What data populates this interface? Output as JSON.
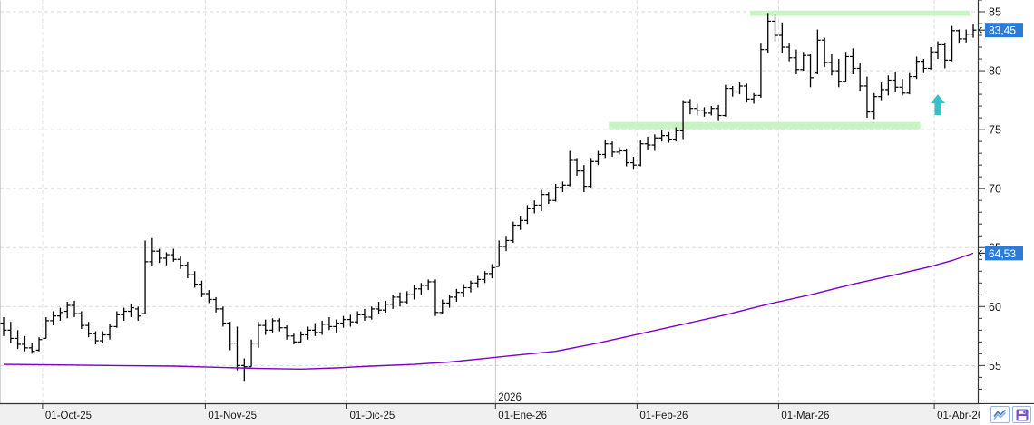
{
  "chart_data": {
    "type": "ohlc-bar",
    "locale": "es",
    "grid": true,
    "colors": {
      "bar": "#000000",
      "moving_average": "#7a00cc",
      "zone_green": "#c8f3c3",
      "signal_arrow": "#35c3c8",
      "price_marker_bg": "#2d7bd8",
      "price_marker_text": "#ffffff",
      "grid_line": "#dadada",
      "month_line": "#e0e0e0",
      "year_line": "#c6c6c6",
      "axis_line": "#333333",
      "axis_text": "#1a1a1a",
      "bottom_strip_bg": "#f0f0f0"
    },
    "y_axis": {
      "min": 51.8,
      "max": 86.0,
      "major_tick_labels": [
        "55",
        "60",
        "65",
        "70",
        "75",
        "80",
        "85"
      ],
      "major_step": 5,
      "minor_step": 1
    },
    "x_axis": {
      "tick_labels": [
        "01-Oct-25",
        "01-Nov-25",
        "01-Dic-25",
        "01-Ene-26",
        "01-Feb-26",
        "01-Mar-26",
        "01-Abr-26"
      ],
      "year_label": "2026"
    },
    "price_markers": [
      {
        "label": "83,45",
        "value": 83.45
      },
      {
        "label": "64,53",
        "value": 64.53
      }
    ],
    "zones": [
      {
        "name": "resistance-zone",
        "from": "2026-02-24",
        "to": "2026-04-07",
        "price_low": 84.65,
        "price_high": 85.1
      },
      {
        "name": "support-zone",
        "from": "2026-01-27",
        "to": "2026-03-27",
        "price_low": 75.05,
        "price_high": 75.65
      }
    ],
    "signal_arrow": {
      "date": "2026-04-01",
      "price": 78.0,
      "direction": "up"
    },
    "moving_average": {
      "last_value": 64.53,
      "points": [
        [
          0,
          55.1
        ],
        [
          8,
          55.05
        ],
        [
          16,
          55.0
        ],
        [
          24,
          54.95
        ],
        [
          30,
          54.85
        ],
        [
          36,
          54.75
        ],
        [
          42,
          54.7
        ],
        [
          47,
          54.8
        ],
        [
          52,
          54.95
        ],
        [
          58,
          55.1
        ],
        [
          63,
          55.3
        ],
        [
          68,
          55.6
        ],
        [
          72,
          55.85
        ],
        [
          78,
          56.2
        ],
        [
          84,
          56.9
        ],
        [
          90,
          57.7
        ],
        [
          96,
          58.5
        ],
        [
          102,
          59.3
        ],
        [
          108,
          60.2
        ],
        [
          114,
          61.0
        ],
        [
          120,
          61.9
        ],
        [
          126,
          62.7
        ],
        [
          131,
          63.4
        ],
        [
          134,
          63.9
        ],
        [
          137,
          64.53
        ]
      ]
    },
    "bars": [
      [
        "2025-09-23",
        58.6,
        59.1,
        57.5,
        58.0
      ],
      [
        "2025-09-24",
        58.0,
        58.7,
        56.9,
        57.3
      ],
      [
        "2025-09-25",
        57.3,
        58.0,
        56.4,
        56.8
      ],
      [
        "2025-09-26",
        56.8,
        57.5,
        56.2,
        56.5
      ],
      [
        "2025-09-29",
        56.5,
        56.9,
        56.0,
        56.2
      ],
      [
        "2025-09-30",
        56.3,
        57.4,
        56.2,
        57.2
      ],
      [
        "2025-10-01",
        57.3,
        59.1,
        57.3,
        58.8
      ],
      [
        "2025-10-02",
        58.8,
        59.6,
        58.4,
        59.2
      ],
      [
        "2025-10-03",
        59.2,
        59.9,
        58.8,
        59.5
      ],
      [
        "2025-10-06",
        59.6,
        60.4,
        59.0,
        60.1
      ],
      [
        "2025-10-07",
        60.1,
        60.5,
        59.1,
        59.4
      ],
      [
        "2025-10-08",
        59.4,
        59.6,
        58.1,
        58.4
      ],
      [
        "2025-10-09",
        58.4,
        58.7,
        57.4,
        57.7
      ],
      [
        "2025-10-10",
        57.7,
        57.9,
        56.8,
        57.1
      ],
      [
        "2025-10-13",
        57.1,
        57.9,
        56.9,
        57.6
      ],
      [
        "2025-10-14",
        57.6,
        58.5,
        57.2,
        58.3
      ],
      [
        "2025-10-15",
        58.3,
        59.6,
        58.2,
        59.3
      ],
      [
        "2025-10-16",
        59.3,
        59.9,
        58.8,
        59.6
      ],
      [
        "2025-10-17",
        59.6,
        60.2,
        59.1,
        59.9
      ],
      [
        "2025-10-20",
        59.8,
        60.0,
        58.8,
        59.2
      ],
      [
        "2025-10-21",
        59.4,
        65.6,
        59.4,
        63.8
      ],
      [
        "2025-10-22",
        63.8,
        65.8,
        63.4,
        64.7
      ],
      [
        "2025-10-23",
        64.7,
        64.9,
        63.7,
        64.1
      ],
      [
        "2025-10-24",
        64.1,
        64.6,
        63.5,
        64.4
      ],
      [
        "2025-10-27",
        64.4,
        64.9,
        63.8,
        64.0
      ],
      [
        "2025-10-28",
        64.0,
        64.3,
        63.2,
        63.5
      ],
      [
        "2025-10-29",
        63.5,
        63.8,
        62.4,
        62.7
      ],
      [
        "2025-10-30",
        62.7,
        63.0,
        61.6,
        61.9
      ],
      [
        "2025-10-31",
        61.9,
        62.2,
        60.8,
        61.1
      ],
      [
        "2025-11-03",
        61.1,
        61.4,
        60.3,
        60.6
      ],
      [
        "2025-11-04",
        60.6,
        60.8,
        59.5,
        59.8
      ],
      [
        "2025-11-05",
        59.8,
        60.0,
        58.3,
        58.6
      ],
      [
        "2025-11-06",
        58.6,
        58.7,
        56.3,
        56.9
      ],
      [
        "2025-11-07",
        56.9,
        58.3,
        54.6,
        55.0
      ],
      [
        "2025-11-10",
        55.0,
        55.6,
        53.7,
        54.9
      ],
      [
        "2025-11-11",
        54.9,
        57.2,
        54.9,
        56.9
      ],
      [
        "2025-11-12",
        56.9,
        58.7,
        56.5,
        58.4
      ],
      [
        "2025-11-13",
        58.4,
        58.9,
        57.6,
        58.0
      ],
      [
        "2025-11-14",
        58.0,
        59.0,
        57.8,
        58.8
      ],
      [
        "2025-11-17",
        58.8,
        59.0,
        57.9,
        58.2
      ],
      [
        "2025-11-18",
        58.2,
        58.4,
        57.2,
        57.5
      ],
      [
        "2025-11-19",
        57.5,
        57.7,
        56.8,
        57.0
      ],
      [
        "2025-11-20",
        57.0,
        57.9,
        56.9,
        57.6
      ],
      [
        "2025-11-21",
        57.6,
        58.3,
        57.2,
        58.0
      ],
      [
        "2025-11-24",
        58.0,
        58.6,
        57.5,
        57.8
      ],
      [
        "2025-11-25",
        57.8,
        58.8,
        57.6,
        58.5
      ],
      [
        "2025-11-26",
        58.5,
        59.1,
        58.0,
        58.3
      ],
      [
        "2025-11-27",
        58.3,
        58.9,
        57.8,
        58.6
      ],
      [
        "2025-11-28",
        58.6,
        59.2,
        58.2,
        58.9
      ],
      [
        "2025-12-01",
        58.9,
        59.3,
        58.3,
        58.7
      ],
      [
        "2025-12-02",
        58.7,
        59.6,
        58.5,
        59.3
      ],
      [
        "2025-12-03",
        59.3,
        59.8,
        58.8,
        59.1
      ],
      [
        "2025-12-04",
        59.1,
        60.0,
        58.9,
        59.8
      ],
      [
        "2025-12-05",
        59.8,
        60.4,
        59.4,
        59.7
      ],
      [
        "2025-12-08",
        59.7,
        60.5,
        59.5,
        60.2
      ],
      [
        "2025-12-09",
        60.2,
        61.0,
        59.8,
        60.8
      ],
      [
        "2025-12-10",
        60.8,
        61.2,
        60.0,
        60.4
      ],
      [
        "2025-12-11",
        60.4,
        61.3,
        60.2,
        61.0
      ],
      [
        "2025-12-12",
        61.0,
        61.8,
        60.6,
        61.5
      ],
      [
        "2025-12-15",
        61.5,
        62.0,
        61.0,
        61.8
      ],
      [
        "2025-12-16",
        61.8,
        62.3,
        61.4,
        62.1
      ],
      [
        "2025-12-17",
        62.1,
        62.3,
        59.2,
        59.5
      ],
      [
        "2025-12-18",
        59.5,
        60.6,
        59.4,
        60.3
      ],
      [
        "2025-12-19",
        60.3,
        61.0,
        59.9,
        60.8
      ],
      [
        "2025-12-22",
        60.8,
        61.5,
        60.4,
        61.2
      ],
      [
        "2025-12-23",
        61.2,
        61.9,
        60.8,
        61.6
      ],
      [
        "2025-12-24",
        61.6,
        62.2,
        61.2,
        62.0
      ],
      [
        "2025-12-29",
        62.0,
        62.6,
        61.6,
        62.3
      ],
      [
        "2025-12-30",
        62.3,
        63.0,
        62.0,
        62.8
      ],
      [
        "2025-12-31",
        62.8,
        63.6,
        62.4,
        63.3
      ],
      [
        "2026-01-02",
        63.4,
        65.6,
        63.4,
        65.1
      ],
      [
        "2026-01-05",
        65.1,
        66.0,
        64.7,
        65.6
      ],
      [
        "2026-01-07",
        65.6,
        67.2,
        65.4,
        66.9
      ],
      [
        "2026-01-08",
        66.9,
        67.7,
        66.5,
        67.3
      ],
      [
        "2026-01-09",
        67.3,
        68.6,
        67.0,
        68.3
      ],
      [
        "2026-01-12",
        68.3,
        69.0,
        67.9,
        68.6
      ],
      [
        "2026-01-13",
        68.6,
        69.9,
        68.1,
        69.5
      ],
      [
        "2026-01-14",
        69.5,
        69.7,
        68.7,
        69.0
      ],
      [
        "2026-01-15",
        69.0,
        70.4,
        68.9,
        70.1
      ],
      [
        "2026-01-16",
        70.1,
        70.6,
        69.7,
        70.3
      ],
      [
        "2026-01-19",
        70.3,
        73.2,
        70.2,
        72.4
      ],
      [
        "2026-01-20",
        72.4,
        72.6,
        71.1,
        71.5
      ],
      [
        "2026-01-21",
        71.5,
        72.0,
        69.7,
        70.2
      ],
      [
        "2026-01-22",
        70.2,
        72.6,
        70.1,
        72.3
      ],
      [
        "2026-01-23",
        72.3,
        73.2,
        72.0,
        72.9
      ],
      [
        "2026-01-26",
        72.9,
        74.1,
        72.6,
        73.8
      ],
      [
        "2026-01-27",
        73.8,
        74.0,
        72.7,
        73.1
      ],
      [
        "2026-01-28",
        73.1,
        73.5,
        72.9,
        73.2
      ],
      [
        "2026-01-29",
        73.2,
        73.4,
        71.9,
        72.2
      ],
      [
        "2026-01-30",
        72.2,
        72.7,
        71.6,
        72.0
      ],
      [
        "2026-02-02",
        72.0,
        74.1,
        71.9,
        73.8
      ],
      [
        "2026-02-03",
        73.8,
        74.4,
        73.3,
        73.7
      ],
      [
        "2026-02-04",
        73.7,
        74.6,
        73.2,
        74.3
      ],
      [
        "2026-02-05",
        74.3,
        75.0,
        74.0,
        74.5
      ],
      [
        "2026-02-06",
        74.5,
        74.8,
        73.9,
        74.2
      ],
      [
        "2026-02-09",
        74.2,
        75.2,
        74.0,
        74.9
      ],
      [
        "2026-02-10",
        74.9,
        77.5,
        74.2,
        77.3
      ],
      [
        "2026-02-11",
        77.3,
        77.6,
        76.3,
        76.8
      ],
      [
        "2026-02-12",
        76.8,
        77.2,
        76.2,
        76.6
      ],
      [
        "2026-02-13",
        76.6,
        76.9,
        76.1,
        76.4
      ],
      [
        "2026-02-16",
        76.4,
        77.0,
        76.2,
        76.8
      ],
      [
        "2026-02-17",
        76.8,
        77.1,
        75.8,
        76.2
      ],
      [
        "2026-02-18",
        76.2,
        78.8,
        76.1,
        78.5
      ],
      [
        "2026-02-19",
        78.5,
        78.7,
        77.8,
        78.2
      ],
      [
        "2026-02-20",
        78.2,
        79.0,
        78.0,
        78.7
      ],
      [
        "2026-02-23",
        78.7,
        78.9,
        77.3,
        77.6
      ],
      [
        "2026-02-24",
        77.6,
        78.1,
        77.2,
        77.9
      ],
      [
        "2026-02-25",
        77.9,
        82.3,
        77.7,
        81.8
      ],
      [
        "2026-02-26",
        81.8,
        84.9,
        81.5,
        84.2
      ],
      [
        "2026-02-27",
        84.2,
        84.8,
        82.5,
        83.0
      ],
      [
        "2026-03-02",
        83.0,
        84.1,
        81.5,
        82.0
      ],
      [
        "2026-03-03",
        82.0,
        82.3,
        80.8,
        81.1
      ],
      [
        "2026-03-04",
        81.1,
        81.8,
        79.7,
        80.1
      ],
      [
        "2026-03-05",
        80.1,
        81.6,
        80.0,
        81.3
      ],
      [
        "2026-03-06",
        81.3,
        81.4,
        78.6,
        79.4
      ],
      [
        "2026-03-09",
        79.8,
        83.5,
        79.7,
        82.6
      ],
      [
        "2026-03-10",
        82.6,
        82.8,
        80.3,
        80.7
      ],
      [
        "2026-03-11",
        80.7,
        81.4,
        79.6,
        80.0
      ],
      [
        "2026-03-12",
        80.0,
        81.0,
        78.6,
        79.1
      ],
      [
        "2026-03-13",
        79.1,
        81.6,
        79.0,
        81.2
      ],
      [
        "2026-03-16",
        81.2,
        81.9,
        79.7,
        80.2
      ],
      [
        "2026-03-17",
        80.2,
        80.7,
        78.3,
        78.7
      ],
      [
        "2026-03-18",
        78.7,
        79.5,
        76.0,
        76.5
      ],
      [
        "2026-03-19",
        76.5,
        78.1,
        75.9,
        77.8
      ],
      [
        "2026-03-20",
        77.8,
        79.0,
        77.5,
        78.4
      ],
      [
        "2026-03-23",
        78.4,
        79.6,
        77.9,
        79.2
      ],
      [
        "2026-03-24",
        79.2,
        79.9,
        78.2,
        78.6
      ],
      [
        "2026-03-25",
        78.6,
        79.3,
        77.9,
        78.1
      ],
      [
        "2026-03-26",
        78.1,
        79.8,
        78.0,
        79.5
      ],
      [
        "2026-03-27",
        79.5,
        81.2,
        79.3,
        80.8
      ],
      [
        "2026-03-30",
        80.8,
        81.0,
        79.8,
        80.2
      ],
      [
        "2026-03-31",
        80.2,
        82.0,
        80.1,
        81.6
      ],
      [
        "2026-04-01",
        81.6,
        82.5,
        81.0,
        82.2
      ],
      [
        "2026-04-02",
        82.2,
        82.4,
        80.2,
        80.9
      ],
      [
        "2026-04-03",
        80.9,
        83.8,
        80.8,
        83.4
      ],
      [
        "2026-04-06",
        83.4,
        83.5,
        82.3,
        82.7
      ],
      [
        "2026-04-07",
        82.7,
        83.5,
        82.4,
        83.1
      ],
      [
        "2026-04-08",
        83.1,
        84.0,
        82.8,
        83.45
      ]
    ]
  },
  "toolbar": {
    "buttons": [
      {
        "name": "indicator",
        "icon": "zigzag-chart-icon"
      },
      {
        "name": "save",
        "icon": "save-icon"
      }
    ]
  }
}
